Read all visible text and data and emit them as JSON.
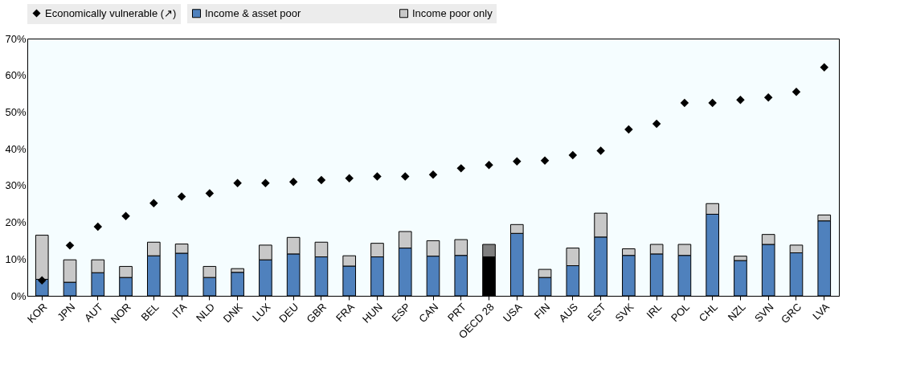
{
  "chart_data": {
    "type": "bar",
    "stacked": true,
    "legend": "top",
    "grid": false,
    "marker": "diamond",
    "categories": [
      "KOR",
      "JPN",
      "AUT",
      "NOR",
      "BEL",
      "ITA",
      "NLD",
      "DNK",
      "LUX",
      "DEU",
      "GBR",
      "FRA",
      "HUN",
      "ESP",
      "CAN",
      "PRT",
      "OECD 28",
      "USA",
      "FIN",
      "AUS",
      "EST",
      "SVK",
      "IRL",
      "POL",
      "CHL",
      "NZL",
      "SVN",
      "GRC",
      "LVA"
    ],
    "ylim": [
      0,
      0.7
    ],
    "yticks": [
      {
        "value": 0,
        "label": "0%"
      },
      {
        "value": 0.1,
        "label": "10%"
      },
      {
        "value": 0.2,
        "label": "20%"
      },
      {
        "value": 0.3,
        "label": "30%"
      },
      {
        "value": 0.4,
        "label": "40%"
      },
      {
        "value": 0.5,
        "label": "50%"
      },
      {
        "value": 0.6,
        "label": "60%"
      },
      {
        "value": 0.7,
        "label": "70%"
      }
    ],
    "series": [
      {
        "name": "Income & asset poor",
        "color": "#4f81bd",
        "colors": [
          "#4f81bd",
          "#4f81bd",
          "#4f81bd",
          "#4f81bd",
          "#4f81bd",
          "#4f81bd",
          "#4f81bd",
          "#4f81bd",
          "#4f81bd",
          "#4f81bd",
          "#4f81bd",
          "#4f81bd",
          "#4f81bd",
          "#4f81bd",
          "#4f81bd",
          "#4f81bd",
          "#000000",
          "#4f81bd",
          "#4f81bd",
          "#4f81bd",
          "#4f81bd",
          "#4f81bd",
          "#4f81bd",
          "#4f81bd",
          "#4f81bd",
          "#4f81bd",
          "#4f81bd",
          "#4f81bd",
          "#4f81bd"
        ],
        "values": [
          0.045,
          0.037,
          0.063,
          0.05,
          0.109,
          0.116,
          0.05,
          0.064,
          0.098,
          0.114,
          0.106,
          0.081,
          0.106,
          0.13,
          0.108,
          0.11,
          0.106,
          0.17,
          0.05,
          0.082,
          0.16,
          0.11,
          0.114,
          0.11,
          0.222,
          0.096,
          0.14,
          0.117,
          0.204
        ]
      },
      {
        "name": "Income poor only",
        "color": "#c8c8c8",
        "colors": [
          "#c8c8c8",
          "#c8c8c8",
          "#c8c8c8",
          "#c8c8c8",
          "#c8c8c8",
          "#c8c8c8",
          "#c8c8c8",
          "#c8c8c8",
          "#c8c8c8",
          "#c8c8c8",
          "#c8c8c8",
          "#c8c8c8",
          "#c8c8c8",
          "#c8c8c8",
          "#c8c8c8",
          "#c8c8c8",
          "#7f7f7f",
          "#c8c8c8",
          "#c8c8c8",
          "#c8c8c8",
          "#c8c8c8",
          "#c8c8c8",
          "#c8c8c8",
          "#c8c8c8",
          "#c8c8c8",
          "#c8c8c8",
          "#c8c8c8",
          "#c8c8c8",
          "#c8c8c8"
        ],
        "values": [
          0.12,
          0.061,
          0.035,
          0.03,
          0.037,
          0.025,
          0.03,
          0.01,
          0.04,
          0.045,
          0.04,
          0.028,
          0.037,
          0.045,
          0.042,
          0.043,
          0.034,
          0.024,
          0.022,
          0.048,
          0.065,
          0.018,
          0.026,
          0.03,
          0.029,
          0.012,
          0.027,
          0.021,
          0.016
        ]
      },
      {
        "name": "Economically vulnerable (↗)",
        "type": "scatter",
        "color": "#000000",
        "values": [
          0.042,
          0.137,
          0.188,
          0.217,
          0.252,
          0.27,
          0.279,
          0.307,
          0.307,
          0.31,
          0.315,
          0.32,
          0.325,
          0.325,
          0.33,
          0.347,
          0.356,
          0.366,
          0.368,
          0.383,
          0.395,
          0.453,
          0.468,
          0.525,
          0.525,
          0.533,
          0.54,
          0.555,
          0.622
        ]
      }
    ]
  }
}
